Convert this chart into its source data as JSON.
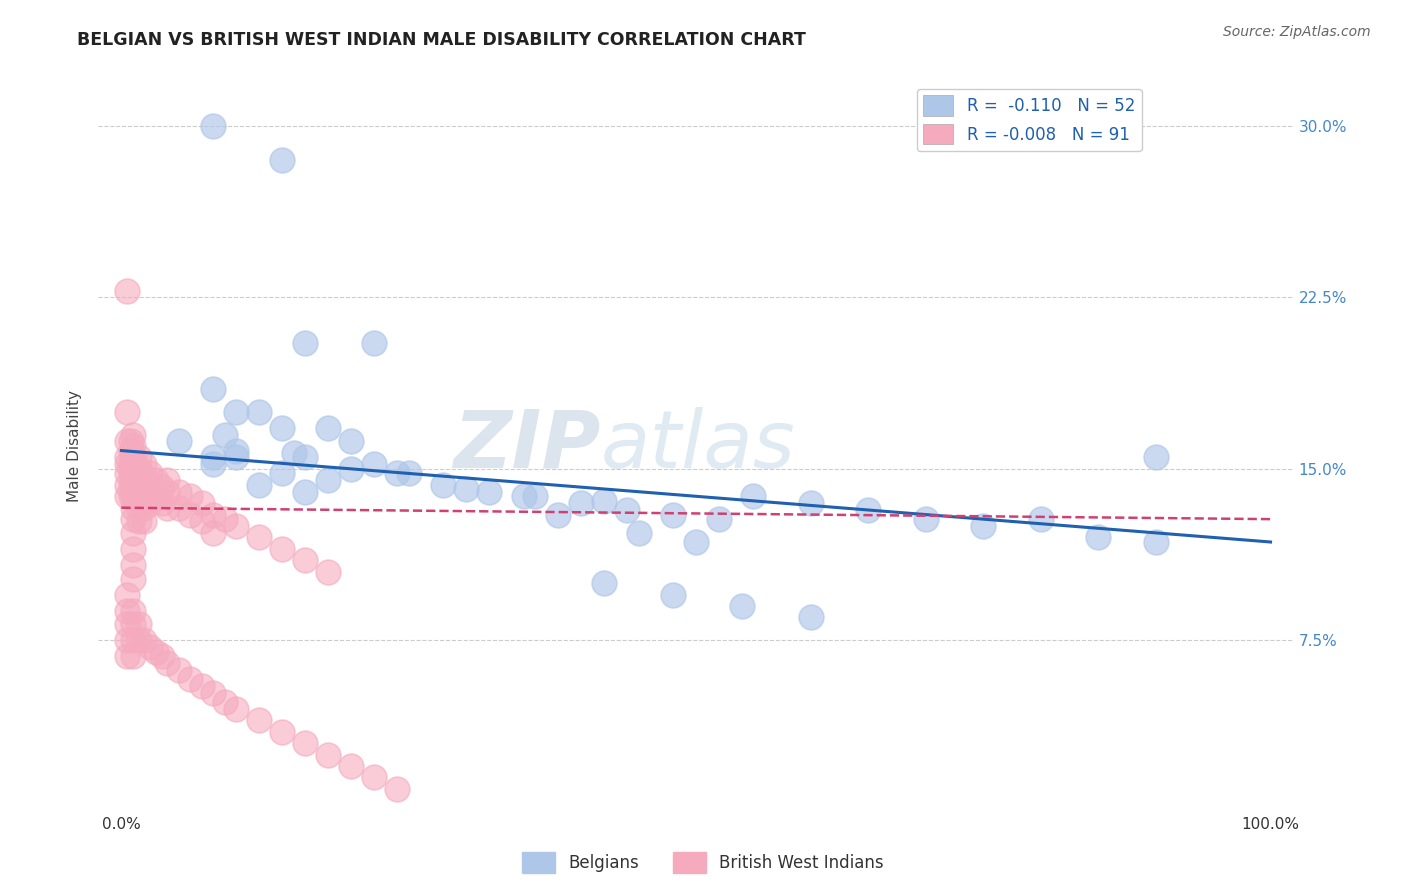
{
  "title": "BELGIAN VS BRITISH WEST INDIAN MALE DISABILITY CORRELATION CHART",
  "source": "Source: ZipAtlas.com",
  "ylabel": "Male Disability",
  "xlim": [
    -0.02,
    1.02
  ],
  "ylim": [
    0.0,
    0.32
  ],
  "yticks": [
    0.075,
    0.15,
    0.225,
    0.3
  ],
  "ytick_labels": [
    "7.5%",
    "15.0%",
    "22.5%",
    "30.0%"
  ],
  "xticks": [
    0.0,
    1.0
  ],
  "xtick_labels": [
    "0.0%",
    "100.0%"
  ],
  "belgian_R": -0.11,
  "belgian_N": 52,
  "bwi_R": -0.008,
  "bwi_N": 91,
  "belgian_color": "#aec6e8",
  "bwi_color": "#f5aabe",
  "belgian_line_color": "#2060b0",
  "bwi_line_color": "#d04070",
  "legend_label_belgian": "Belgians",
  "legend_label_bwi": "British West Indians",
  "watermark_zip": "ZIP",
  "watermark_atlas": "atlas",
  "background_color": "#ffffff",
  "grid_color": "#cccccc",
  "belgian_x": [
    0.08,
    0.14,
    0.16,
    0.22,
    0.08,
    0.1,
    0.09,
    0.05,
    0.1,
    0.08,
    0.12,
    0.14,
    0.1,
    0.08,
    0.18,
    0.2,
    0.15,
    0.16,
    0.22,
    0.25,
    0.2,
    0.18,
    0.14,
    0.12,
    0.16,
    0.24,
    0.28,
    0.32,
    0.36,
    0.4,
    0.44,
    0.48,
    0.52,
    0.3,
    0.35,
    0.42,
    0.55,
    0.6,
    0.65,
    0.7,
    0.75,
    0.8,
    0.85,
    0.9,
    0.38,
    0.45,
    0.5,
    0.42,
    0.48,
    0.54,
    0.6,
    0.9
  ],
  "belgian_y": [
    0.3,
    0.285,
    0.205,
    0.205,
    0.185,
    0.175,
    0.165,
    0.162,
    0.158,
    0.155,
    0.175,
    0.168,
    0.155,
    0.152,
    0.168,
    0.162,
    0.157,
    0.155,
    0.152,
    0.148,
    0.15,
    0.145,
    0.148,
    0.143,
    0.14,
    0.148,
    0.143,
    0.14,
    0.138,
    0.135,
    0.132,
    0.13,
    0.128,
    0.141,
    0.138,
    0.136,
    0.138,
    0.135,
    0.132,
    0.128,
    0.125,
    0.128,
    0.12,
    0.118,
    0.13,
    0.122,
    0.118,
    0.1,
    0.095,
    0.09,
    0.085,
    0.155
  ],
  "bwi_x": [
    0.005,
    0.005,
    0.005,
    0.005,
    0.005,
    0.005,
    0.005,
    0.005,
    0.008,
    0.008,
    0.008,
    0.008,
    0.008,
    0.008,
    0.01,
    0.01,
    0.01,
    0.01,
    0.01,
    0.01,
    0.01,
    0.01,
    0.01,
    0.01,
    0.01,
    0.01,
    0.01,
    0.015,
    0.015,
    0.015,
    0.015,
    0.015,
    0.015,
    0.02,
    0.02,
    0.02,
    0.02,
    0.02,
    0.025,
    0.025,
    0.025,
    0.03,
    0.03,
    0.035,
    0.035,
    0.04,
    0.04,
    0.04,
    0.05,
    0.05,
    0.06,
    0.06,
    0.07,
    0.07,
    0.08,
    0.08,
    0.09,
    0.1,
    0.12,
    0.14,
    0.16,
    0.18,
    0.005,
    0.005,
    0.005,
    0.005,
    0.005,
    0.01,
    0.01,
    0.01,
    0.01,
    0.015,
    0.015,
    0.02,
    0.025,
    0.03,
    0.035,
    0.04,
    0.05,
    0.06,
    0.07,
    0.08,
    0.09,
    0.1,
    0.12,
    0.14,
    0.16,
    0.18,
    0.2,
    0.22,
    0.24
  ],
  "bwi_y": [
    0.228,
    0.175,
    0.162,
    0.155,
    0.152,
    0.148,
    0.143,
    0.138,
    0.162,
    0.158,
    0.152,
    0.148,
    0.143,
    0.138,
    0.165,
    0.16,
    0.155,
    0.152,
    0.148,
    0.143,
    0.138,
    0.133,
    0.128,
    0.122,
    0.115,
    0.108,
    0.102,
    0.155,
    0.15,
    0.145,
    0.14,
    0.133,
    0.127,
    0.152,
    0.147,
    0.14,
    0.133,
    0.127,
    0.148,
    0.142,
    0.135,
    0.145,
    0.138,
    0.142,
    0.135,
    0.145,
    0.14,
    0.133,
    0.14,
    0.133,
    0.138,
    0.13,
    0.135,
    0.127,
    0.13,
    0.122,
    0.128,
    0.125,
    0.12,
    0.115,
    0.11,
    0.105,
    0.095,
    0.088,
    0.082,
    0.075,
    0.068,
    0.088,
    0.082,
    0.075,
    0.068,
    0.082,
    0.075,
    0.075,
    0.072,
    0.07,
    0.068,
    0.065,
    0.062,
    0.058,
    0.055,
    0.052,
    0.048,
    0.045,
    0.04,
    0.035,
    0.03,
    0.025,
    0.02,
    0.015,
    0.01
  ],
  "belgian_trendline_x": [
    0.0,
    1.0
  ],
  "belgian_trendline_y": [
    0.158,
    0.118
  ],
  "bwi_trendline_x": [
    0.0,
    1.0
  ],
  "bwi_trendline_y": [
    0.133,
    0.128
  ]
}
